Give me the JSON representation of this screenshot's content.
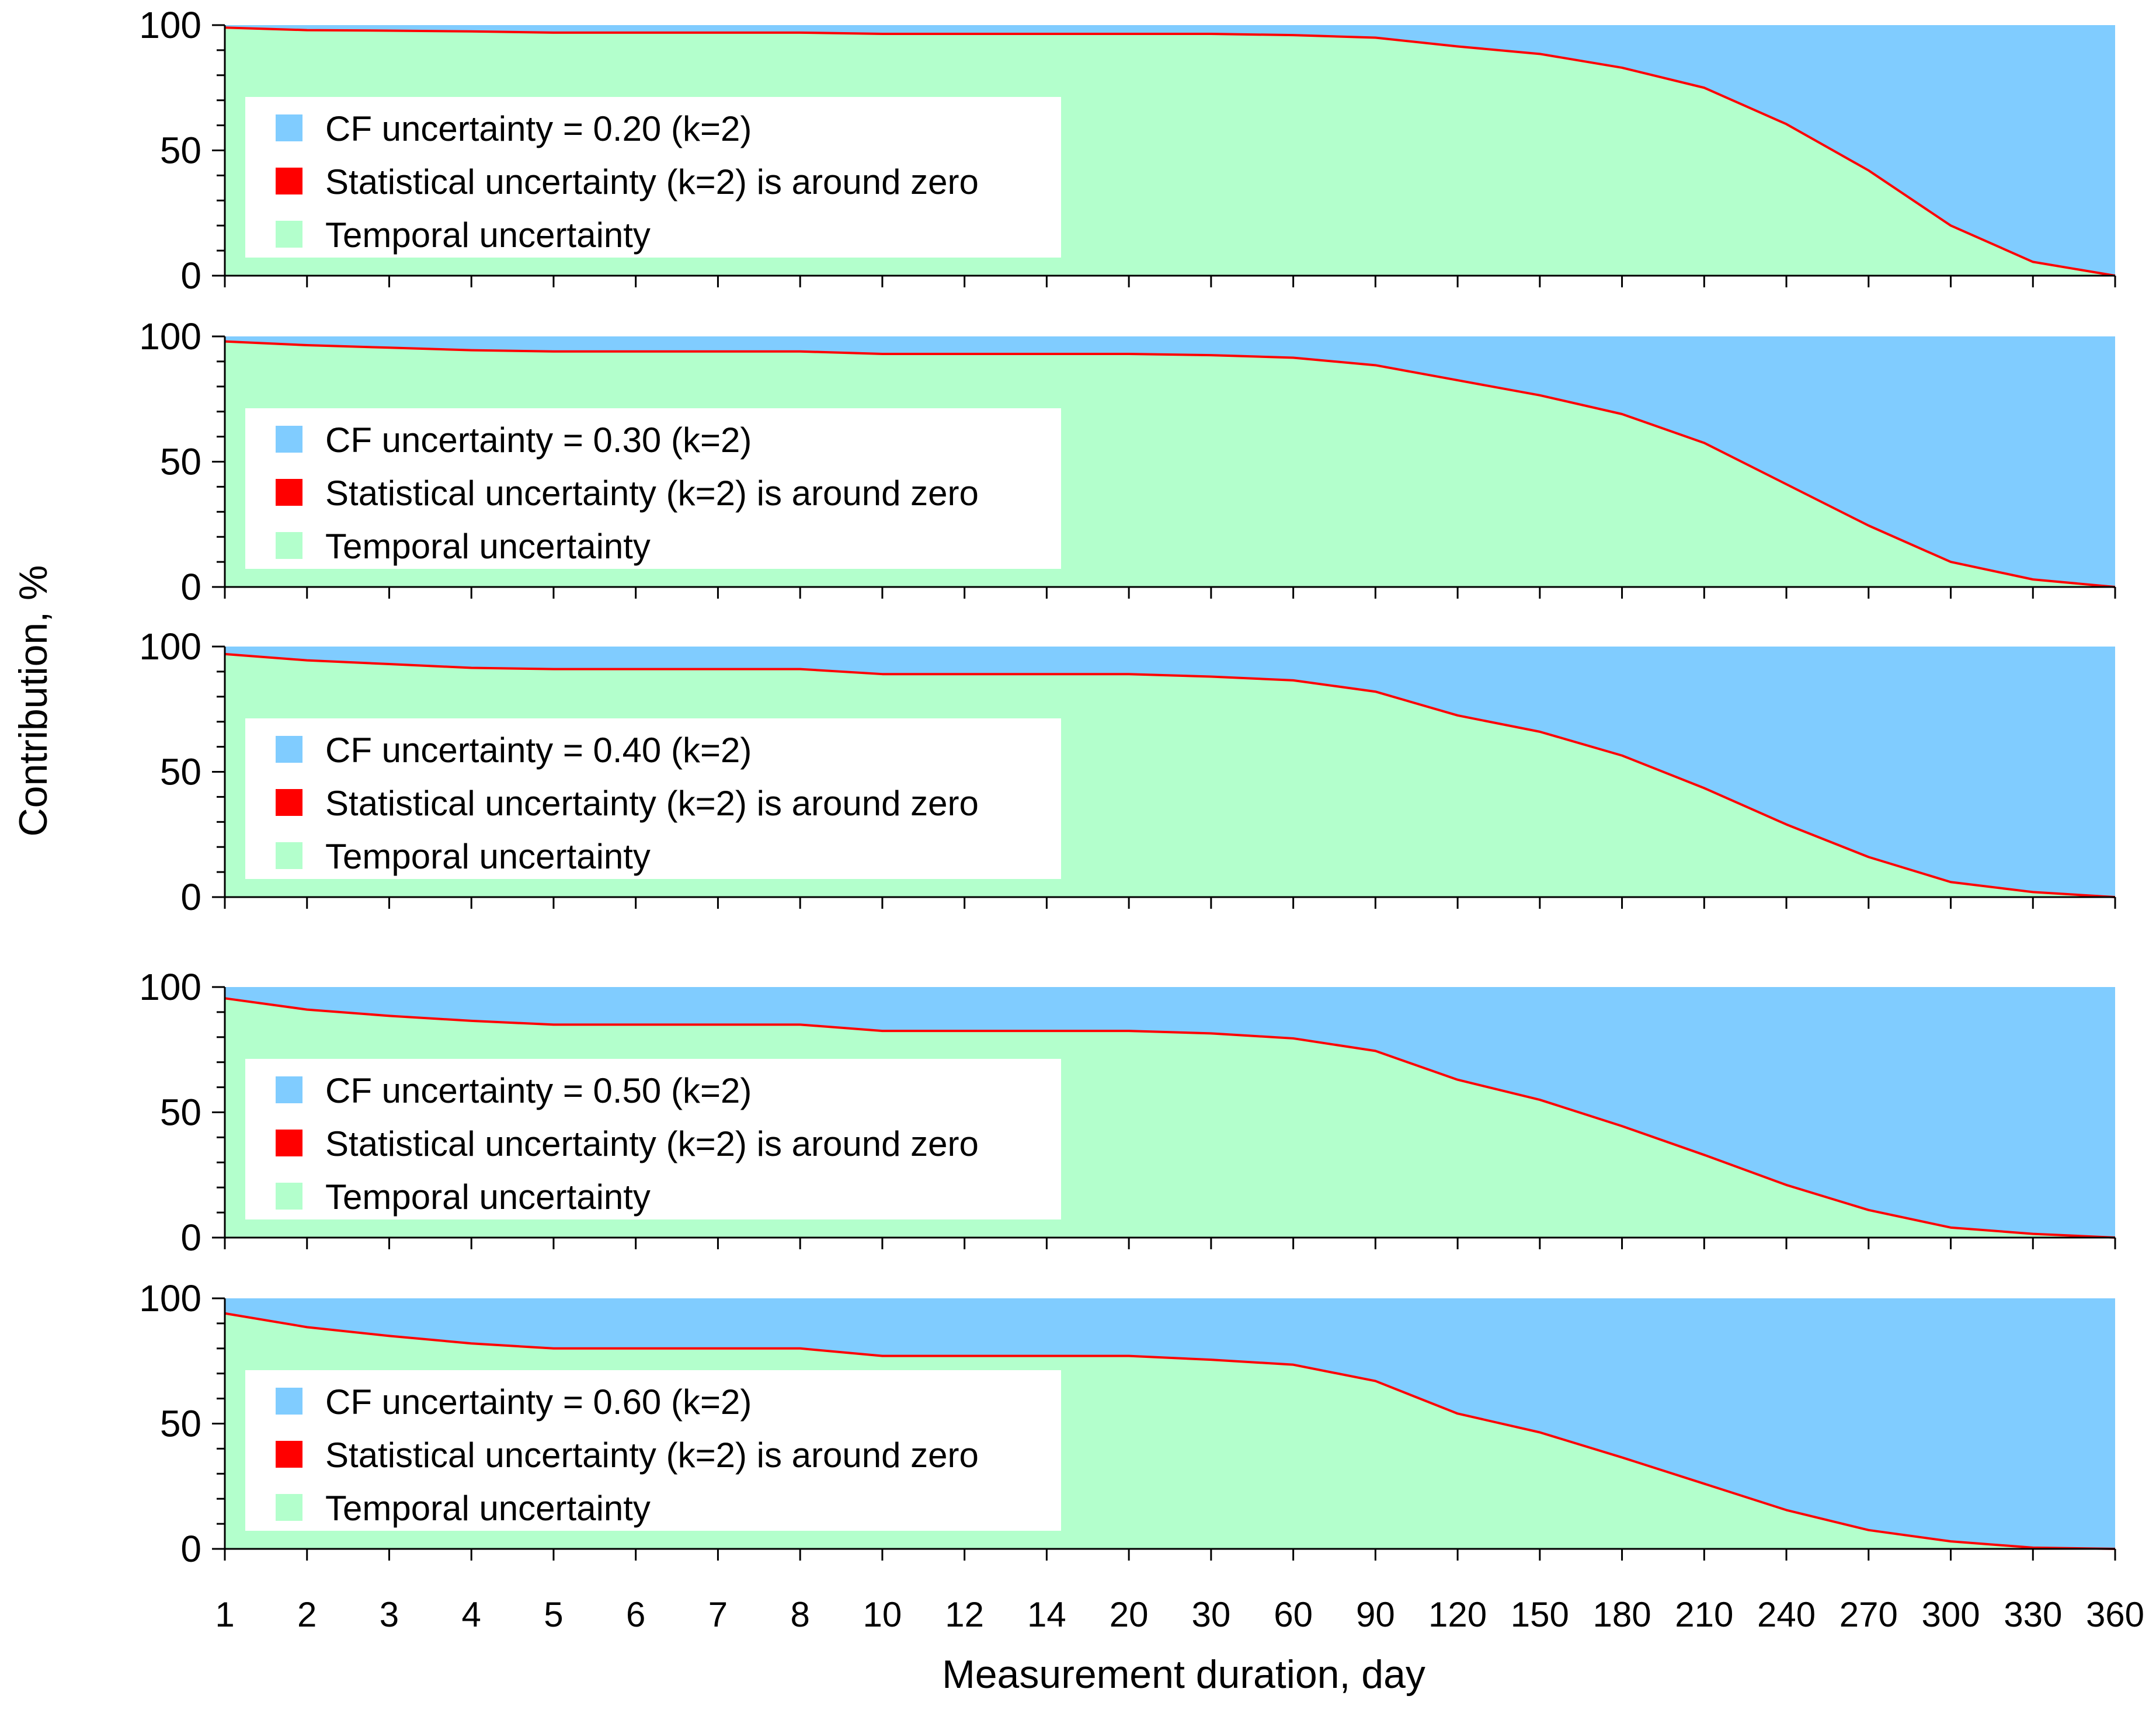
{
  "chart_data": {
    "type": "area",
    "stacked": true,
    "normalized_to_100": true,
    "xlabel": "Measurement duration, day",
    "ylabel": "Contribution, %",
    "x_categories": [
      "1",
      "2",
      "3",
      "4",
      "5",
      "6",
      "7",
      "8",
      "10",
      "12",
      "14",
      "20",
      "30",
      "60",
      "90",
      "120",
      "150",
      "180",
      "210",
      "240",
      "270",
      "300",
      "330",
      "360"
    ],
    "y_ticks": [
      "0",
      "50",
      "100"
    ],
    "ylim": [
      0,
      100
    ],
    "colors": {
      "cf": "#80CCFF",
      "statistical": "#FF0000",
      "temporal": "#B3FFCC",
      "axis": "#000000"
    },
    "legend_placement": "upper-left inside each panel",
    "panels": [
      {
        "legend": [
          "CF uncertainty = 0.20 (k=2)",
          "Statistical uncertainty (k=2) is around zero",
          "Temporal uncertainty"
        ],
        "temporal": [
          99,
          98,
          97.8,
          97.5,
          97,
          97,
          97,
          97,
          96.5,
          96.5,
          96.5,
          96.5,
          96.5,
          96,
          95,
          91.5,
          88.5,
          83,
          75,
          60.5,
          42,
          20,
          5.5,
          0
        ]
      },
      {
        "legend": [
          "CF uncertainty = 0.30 (k=2)",
          "Statistical uncertainty (k=2) is around zero",
          "Temporal uncertainty"
        ],
        "temporal": [
          98,
          96.5,
          95.5,
          94.5,
          94,
          94,
          94,
          94,
          93,
          93,
          93,
          93,
          92.5,
          91.5,
          88.5,
          82.5,
          76.5,
          69,
          57.5,
          41,
          24.5,
          10,
          3,
          0
        ]
      },
      {
        "legend": [
          "CF uncertainty = 0.40 (k=2)",
          "Statistical uncertainty (k=2) is around zero",
          "Temporal uncertainty"
        ],
        "temporal": [
          97,
          94.5,
          93,
          91.5,
          91,
          91,
          91,
          91,
          89,
          89,
          89,
          89,
          88,
          86.5,
          82,
          72.5,
          66,
          56.5,
          43.5,
          29,
          16,
          6,
          2,
          0
        ]
      },
      {
        "legend": [
          "CF uncertainty = 0.50 (k=2)",
          "Statistical uncertainty (k=2) is around zero",
          "Temporal uncertainty"
        ],
        "temporal": [
          95.5,
          91,
          88.5,
          86.5,
          85,
          85,
          85,
          85,
          82.5,
          82.5,
          82.5,
          82.5,
          81.5,
          79.5,
          74.5,
          63,
          55,
          44.5,
          33,
          21,
          11,
          4,
          1.5,
          0
        ]
      },
      {
        "legend": [
          "CF uncertainty = 0.60 (k=2)",
          "Statistical uncertainty (k=2) is around zero",
          "Temporal uncertainty"
        ],
        "temporal": [
          94,
          88.5,
          85,
          82,
          80,
          80,
          80,
          80,
          77,
          77,
          77,
          77,
          75.5,
          73.5,
          67,
          54,
          46.5,
          36.5,
          26,
          15.5,
          7.5,
          3,
          0.5,
          0
        ]
      }
    ]
  }
}
